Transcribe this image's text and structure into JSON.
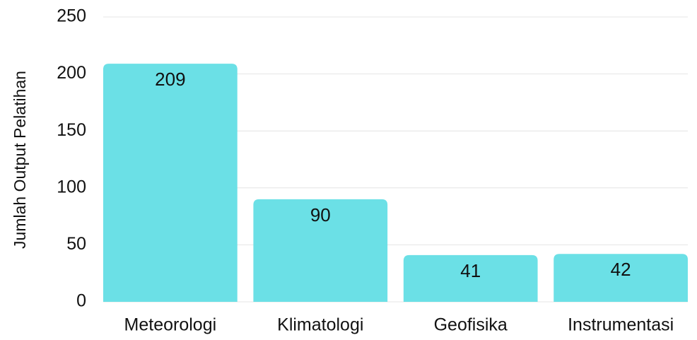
{
  "chart_data": {
    "type": "bar",
    "categories": [
      "Meteorologi",
      "Klimatologi",
      "Geofisika",
      "Instrumentasi"
    ],
    "values": [
      209,
      90,
      41,
      42
    ],
    "color": "#6be0e6",
    "y_label": "Jumlah Output Pelatihan",
    "ylim": [
      0,
      250
    ],
    "yticks": [
      0,
      50,
      100,
      150,
      200,
      250
    ],
    "grid": true
  }
}
